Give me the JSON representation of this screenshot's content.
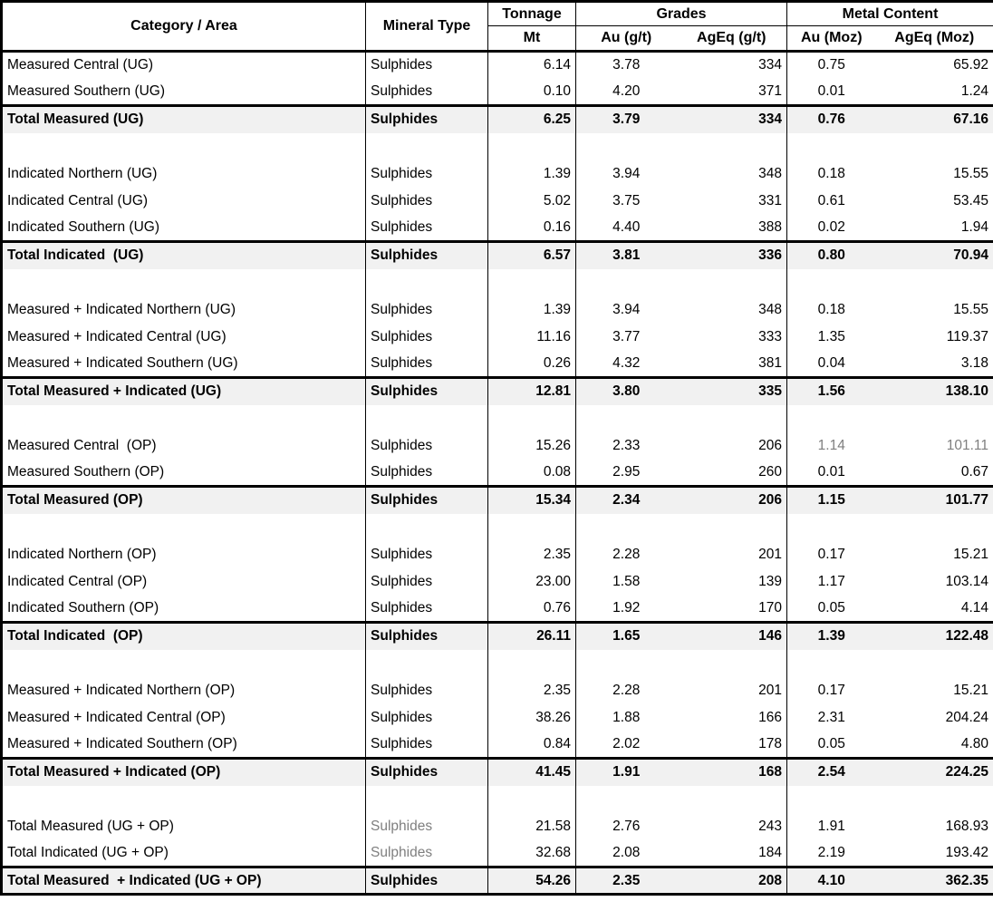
{
  "colors": {
    "border": "#000000",
    "total_row_background": "#f1f1f1",
    "muted_text": "#7f7f7f",
    "text": "#000000"
  },
  "table": {
    "headers": {
      "category_area": "Category / Area",
      "mineral_type": "Mineral Type",
      "tonnage": "Tonnage",
      "tonnage_unit": "Mt",
      "grades": "Grades",
      "au_gpt": "Au (g/t)",
      "ageq_gpt": "AgEq (g/t)",
      "metal_content": "Metal Content",
      "au_moz": "Au (Moz)",
      "ageq_moz": "AgEq (Moz)"
    },
    "rows": [
      {
        "type": "data",
        "category": "Measured Central (UG)",
        "mineral": "Sulphides",
        "tonnage": "6.14",
        "au_gpt": "3.78",
        "ageq_gpt": "334",
        "au_moz": "0.75",
        "ageq_moz": "65.92"
      },
      {
        "type": "data",
        "category": "Measured Southern (UG)",
        "mineral": "Sulphides",
        "tonnage": "0.10",
        "au_gpt": "4.20",
        "ageq_gpt": "371",
        "au_moz": "0.01",
        "ageq_moz": "1.24"
      },
      {
        "type": "total",
        "category": "Total Measured (UG)",
        "mineral": "Sulphides",
        "tonnage": "6.25",
        "au_gpt": "3.79",
        "ageq_gpt": "334",
        "au_moz": "0.76",
        "ageq_moz": "67.16"
      },
      {
        "type": "spacer"
      },
      {
        "type": "data",
        "category": "Indicated Northern (UG)",
        "mineral": "Sulphides",
        "tonnage": "1.39",
        "au_gpt": "3.94",
        "ageq_gpt": "348",
        "au_moz": "0.18",
        "ageq_moz": "15.55"
      },
      {
        "type": "data",
        "category": "Indicated Central (UG)",
        "mineral": "Sulphides",
        "tonnage": "5.02",
        "au_gpt": "3.75",
        "ageq_gpt": "331",
        "au_moz": "0.61",
        "ageq_moz": "53.45"
      },
      {
        "type": "data",
        "category": "Indicated Southern (UG)",
        "mineral": "Sulphides",
        "tonnage": "0.16",
        "au_gpt": "4.40",
        "ageq_gpt": "388",
        "au_moz": "0.02",
        "ageq_moz": "1.94"
      },
      {
        "type": "total",
        "category": "Total Indicated  (UG)",
        "mineral": "Sulphides",
        "tonnage": "6.57",
        "au_gpt": "3.81",
        "ageq_gpt": "336",
        "au_moz": "0.80",
        "ageq_moz": "70.94"
      },
      {
        "type": "spacer"
      },
      {
        "type": "data",
        "category": "Measured + Indicated Northern (UG)",
        "mineral": "Sulphides",
        "tonnage": "1.39",
        "au_gpt": "3.94",
        "ageq_gpt": "348",
        "au_moz": "0.18",
        "ageq_moz": "15.55"
      },
      {
        "type": "data",
        "category": "Measured + Indicated Central (UG)",
        "mineral": "Sulphides",
        "tonnage": "11.16",
        "au_gpt": "3.77",
        "ageq_gpt": "333",
        "au_moz": "1.35",
        "ageq_moz": "119.37"
      },
      {
        "type": "data",
        "category": "Measured + Indicated Southern (UG)",
        "mineral": "Sulphides",
        "tonnage": "0.26",
        "au_gpt": "4.32",
        "ageq_gpt": "381",
        "au_moz": "0.04",
        "ageq_moz": "3.18"
      },
      {
        "type": "total",
        "category": "Total Measured + Indicated (UG)",
        "mineral": "Sulphides",
        "tonnage": "12.81",
        "au_gpt": "3.80",
        "ageq_gpt": "335",
        "au_moz": "1.56",
        "ageq_moz": "138.10"
      },
      {
        "type": "spacer"
      },
      {
        "type": "data",
        "category": "Measured Central  (OP)",
        "mineral": "Sulphides",
        "tonnage": "15.26",
        "au_gpt": "2.33",
        "ageq_gpt": "206",
        "au_moz": "1.14",
        "ageq_moz": "101.11",
        "muted": [
          "au_moz",
          "ageq_moz"
        ]
      },
      {
        "type": "data",
        "category": "Measured Southern (OP)",
        "mineral": "Sulphides",
        "tonnage": "0.08",
        "au_gpt": "2.95",
        "ageq_gpt": "260",
        "au_moz": "0.01",
        "ageq_moz": "0.67"
      },
      {
        "type": "total",
        "category": "Total Measured (OP)",
        "mineral": "Sulphides",
        "tonnage": "15.34",
        "au_gpt": "2.34",
        "ageq_gpt": "206",
        "au_moz": "1.15",
        "ageq_moz": "101.77"
      },
      {
        "type": "spacer"
      },
      {
        "type": "data",
        "category": "Indicated Northern (OP)",
        "mineral": "Sulphides",
        "tonnage": "2.35",
        "au_gpt": "2.28",
        "ageq_gpt": "201",
        "au_moz": "0.17",
        "ageq_moz": "15.21"
      },
      {
        "type": "data",
        "category": "Indicated Central (OP)",
        "mineral": "Sulphides",
        "tonnage": "23.00",
        "au_gpt": "1.58",
        "ageq_gpt": "139",
        "au_moz": "1.17",
        "ageq_moz": "103.14"
      },
      {
        "type": "data",
        "category": "Indicated Southern (OP)",
        "mineral": "Sulphides",
        "tonnage": "0.76",
        "au_gpt": "1.92",
        "ageq_gpt": "170",
        "au_moz": "0.05",
        "ageq_moz": "4.14"
      },
      {
        "type": "total",
        "category": "Total Indicated  (OP)",
        "mineral": "Sulphides",
        "tonnage": "26.11",
        "au_gpt": "1.65",
        "ageq_gpt": "146",
        "au_moz": "1.39",
        "ageq_moz": "122.48"
      },
      {
        "type": "spacer"
      },
      {
        "type": "data",
        "category": "Measured + Indicated Northern (OP)",
        "mineral": "Sulphides",
        "tonnage": "2.35",
        "au_gpt": "2.28",
        "ageq_gpt": "201",
        "au_moz": "0.17",
        "ageq_moz": "15.21"
      },
      {
        "type": "data",
        "category": "Measured + Indicated Central (OP)",
        "mineral": "Sulphides",
        "tonnage": "38.26",
        "au_gpt": "1.88",
        "ageq_gpt": "166",
        "au_moz": "2.31",
        "ageq_moz": "204.24"
      },
      {
        "type": "data",
        "category": "Measured + Indicated Southern (OP)",
        "mineral": "Sulphides",
        "tonnage": "0.84",
        "au_gpt": "2.02",
        "ageq_gpt": "178",
        "au_moz": "0.05",
        "ageq_moz": "4.80"
      },
      {
        "type": "total",
        "category": "Total Measured + Indicated (OP)",
        "mineral": "Sulphides",
        "tonnage": "41.45",
        "au_gpt": "1.91",
        "ageq_gpt": "168",
        "au_moz": "2.54",
        "ageq_moz": "224.25"
      },
      {
        "type": "spacer"
      },
      {
        "type": "data",
        "category": "Total Measured (UG + OP)",
        "mineral": "Sulphides",
        "tonnage": "21.58",
        "au_gpt": "2.76",
        "ageq_gpt": "243",
        "au_moz": "1.91",
        "ageq_moz": "168.93",
        "muted": [
          "mineral"
        ]
      },
      {
        "type": "data",
        "category": "Total Indicated (UG + OP)",
        "mineral": "Sulphides",
        "tonnage": "32.68",
        "au_gpt": "2.08",
        "ageq_gpt": "184",
        "au_moz": "2.19",
        "ageq_moz": "193.42",
        "muted": [
          "mineral"
        ]
      },
      {
        "type": "total",
        "category": "Total Measured  + Indicated (UG + OP)",
        "mineral": "Sulphides",
        "tonnage": "54.26",
        "au_gpt": "2.35",
        "ageq_gpt": "208",
        "au_moz": "4.10",
        "ageq_moz": "362.35"
      }
    ]
  }
}
